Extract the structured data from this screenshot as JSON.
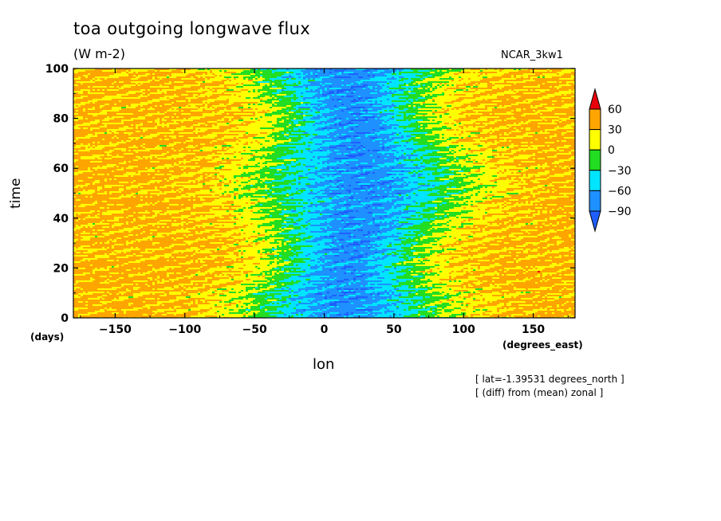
{
  "chart_data": {
    "type": "heatmap",
    "title": "toa outgoing longwave flux",
    "subtitle": "(W m-2)",
    "model_label": "NCAR_3kw1",
    "xlabel": "lon",
    "xlabel_units": "(degrees_east)",
    "ylabel": "time",
    "ylabel_units": "(days)",
    "xlim": [
      -180,
      180
    ],
    "ylim": [
      0,
      100
    ],
    "x_ticks": [
      -150,
      -100,
      -50,
      0,
      50,
      100,
      150
    ],
    "y_ticks": [
      0,
      20,
      40,
      60,
      80,
      100
    ],
    "colorbar": {
      "labels": [
        60,
        30,
        0,
        -30,
        -60,
        -90
      ],
      "levels": [
        {
          "range": ">60",
          "color": "#e8000b"
        },
        {
          "range": "30 to 60",
          "color": "#ffa500"
        },
        {
          "range": "0 to 30",
          "color": "#ffff00"
        },
        {
          "range": "-30 to 0",
          "color": "#22dd22"
        },
        {
          "range": "-60 to -30",
          "color": "#00e5ff"
        },
        {
          "range": "-90 to -60",
          "color": "#1e90ff"
        },
        {
          "range": "<-90",
          "color": "#1f5fff"
        }
      ]
    },
    "annotations": [
      "[ lat=-1.39531 degrees_north ]",
      "[ (diff) from (mean) zonal ]"
    ],
    "grid": false
  }
}
